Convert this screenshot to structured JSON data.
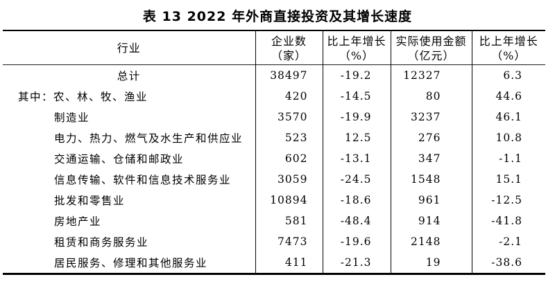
{
  "title": "表 13  2022 年外商直接投资及其增长速度",
  "colors": {
    "text": "#000000",
    "background": "#ffffff",
    "border": "#000000"
  },
  "table": {
    "columns": [
      {
        "label": "行业",
        "unit": ""
      },
      {
        "label": "企业数",
        "unit": "（家）"
      },
      {
        "label": "比上年增长",
        "unit": "（%）"
      },
      {
        "label": "实际使用金额",
        "unit": "（亿元）"
      },
      {
        "label": "比上年增长",
        "unit": "（%）"
      }
    ],
    "rows": [
      {
        "style": "total",
        "cells": [
          "总计",
          "38497",
          "-19.2",
          "12327",
          "6.3"
        ]
      },
      {
        "style": "prefix",
        "cells": [
          "其中：农、林、牧、渔业",
          "420",
          "-14.5",
          "80",
          "44.6"
        ]
      },
      {
        "style": "item",
        "cells": [
          "制造业",
          "3570",
          "-19.9",
          "3237",
          "46.1"
        ]
      },
      {
        "style": "item",
        "cells": [
          "电力、热力、燃气及水生产和供应业",
          "523",
          "12.5",
          "276",
          "10.8"
        ]
      },
      {
        "style": "item",
        "cells": [
          "交通运输、仓储和邮政业",
          "602",
          "-13.1",
          "347",
          "-1.1"
        ]
      },
      {
        "style": "item",
        "cells": [
          "信息传输、软件和信息技术服务业",
          "3059",
          "-24.5",
          "1548",
          "15.1"
        ]
      },
      {
        "style": "item",
        "cells": [
          "批发和零售业",
          "10894",
          "-18.6",
          "961",
          "-12.5"
        ]
      },
      {
        "style": "item",
        "cells": [
          "房地产业",
          "581",
          "-48.4",
          "914",
          "-41.8"
        ]
      },
      {
        "style": "item",
        "cells": [
          "租赁和商务服务业",
          "7473",
          "-19.6",
          "2148",
          "-2.1"
        ]
      },
      {
        "style": "item",
        "cells": [
          "居民服务、修理和其他服务业",
          "411",
          "-21.3",
          "19",
          "-38.6"
        ]
      }
    ]
  }
}
